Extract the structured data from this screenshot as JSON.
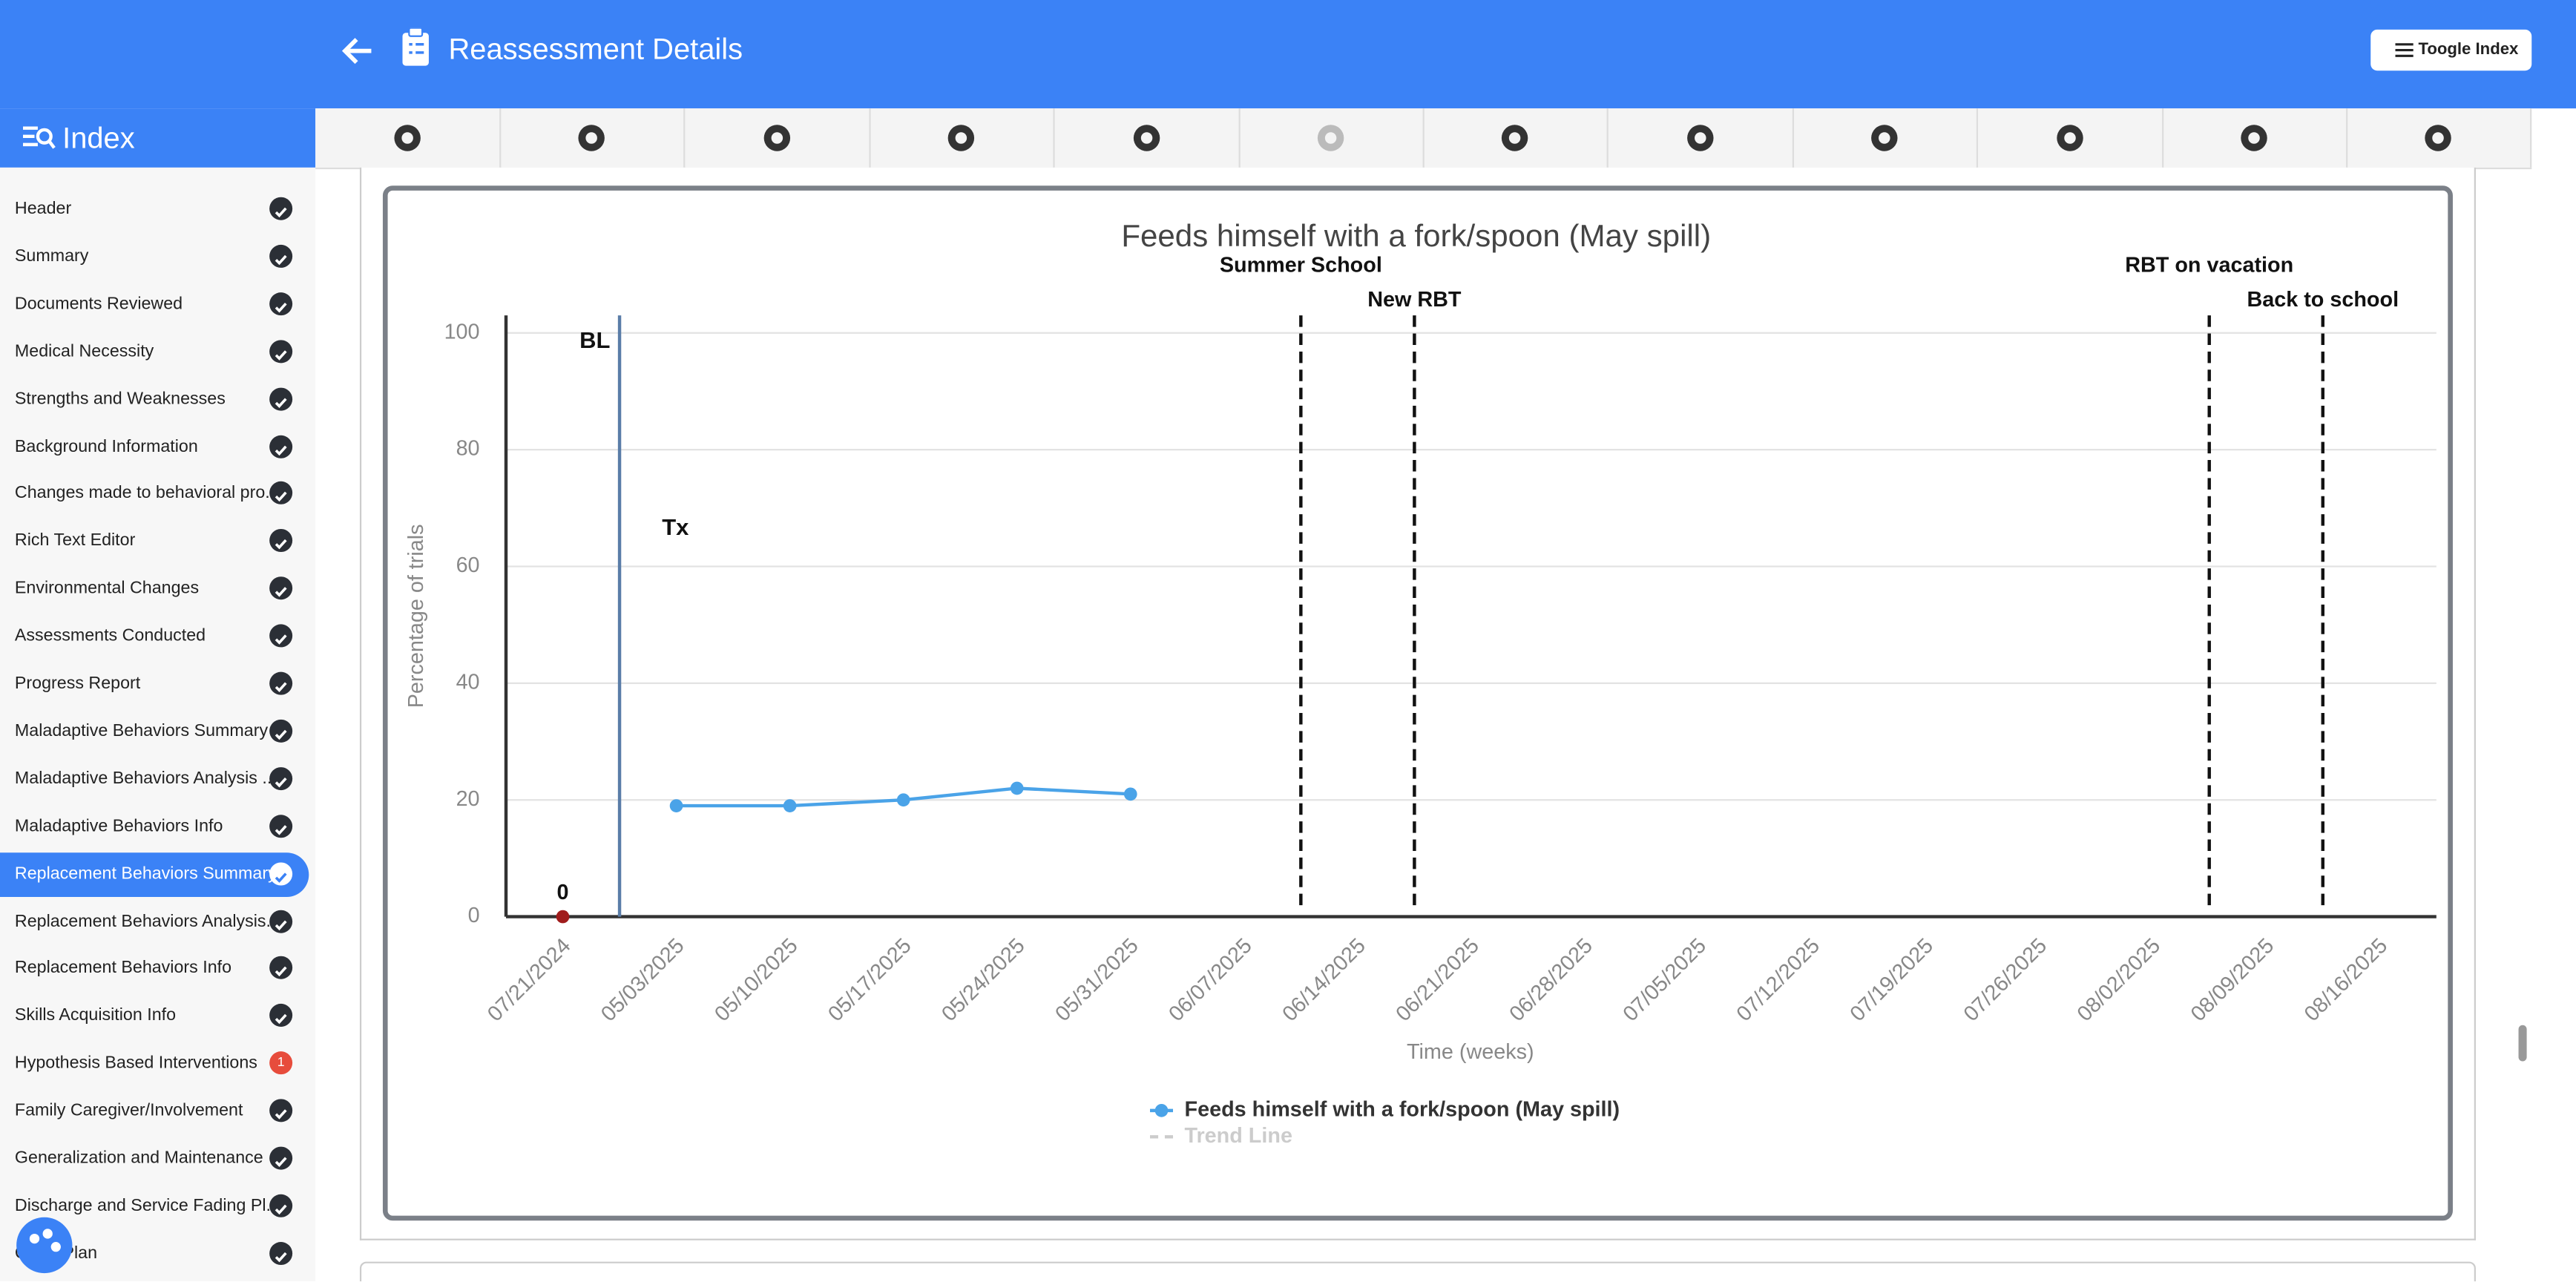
{
  "header": {
    "title": "Reassessment Details",
    "toggle_button": "Toogle Index"
  },
  "sidebar": {
    "title": "Index",
    "items": [
      {
        "label": "Header"
      },
      {
        "label": "Summary"
      },
      {
        "label": "Documents Reviewed"
      },
      {
        "label": "Medical Necessity"
      },
      {
        "label": "Strengths and Weaknesses"
      },
      {
        "label": "Background Information"
      },
      {
        "label": "Changes made to behavioral pro..."
      },
      {
        "label": "Rich Text Editor"
      },
      {
        "label": "Environmental Changes"
      },
      {
        "label": "Assessments Conducted"
      },
      {
        "label": "Progress Report"
      },
      {
        "label": "Maladaptive Behaviors Summary"
      },
      {
        "label": "Maladaptive Behaviors Analysis ..."
      },
      {
        "label": "Maladaptive Behaviors Info"
      },
      {
        "label": "Replacement Behaviors Summary",
        "active": true
      },
      {
        "label": "Replacement Behaviors Analysis..."
      },
      {
        "label": "Replacement Behaviors Info"
      },
      {
        "label": "Skills Acquisition Info"
      },
      {
        "label": "Hypothesis Based Interventions",
        "badge": 1
      },
      {
        "label": "Family Caregiver/Involvement"
      },
      {
        "label": "Generalization and Maintenance"
      },
      {
        "label": "Discharge and Service Fading Pl..."
      },
      {
        "label": "Crisis Plan"
      }
    ]
  },
  "chart_data": {
    "type": "line",
    "title": "Feeds himself with a fork/spoon (May spill)",
    "x_label": "Time (weeks)",
    "y_label": "Percentage of trials",
    "categories": [
      "07/21/2024",
      "05/03/2025",
      "05/10/2025",
      "05/17/2025",
      "05/24/2025",
      "05/31/2025",
      "06/07/2025",
      "06/14/2025",
      "06/21/2025",
      "06/28/2025",
      "07/05/2025",
      "07/12/2025",
      "07/19/2025",
      "07/26/2025",
      "08/02/2025",
      "08/09/2025",
      "08/16/2025"
    ],
    "baseline": {
      "color": "#a01c1c",
      "values": [
        0,
        null,
        null,
        null,
        null,
        null,
        null,
        null,
        null,
        null,
        null,
        null,
        null,
        null,
        null,
        null,
        null
      ]
    },
    "series": [
      {
        "name": "Feeds himself with a fork/spoon (May spill)",
        "color": "#4aa3e8",
        "values": [
          null,
          19,
          19,
          20,
          22,
          21,
          null,
          null,
          null,
          null,
          null,
          null,
          null,
          null,
          null,
          null,
          null
        ]
      }
    ],
    "trend_line": {
      "name": "Trend Line",
      "hidden": true
    },
    "phase_labels": [
      "BL",
      "Tx"
    ],
    "annotations": [
      {
        "label": "Summer School",
        "x": 6.5
      },
      {
        "label": "New RBT",
        "x": 7.5
      },
      {
        "label": "RBT on vacation",
        "x": 14.5
      },
      {
        "label": "Back to school",
        "x": 15.5
      }
    ],
    "ylim": [
      0,
      103
    ],
    "yticks": [
      0,
      20,
      40,
      60,
      80,
      100
    ],
    "grid": true
  }
}
